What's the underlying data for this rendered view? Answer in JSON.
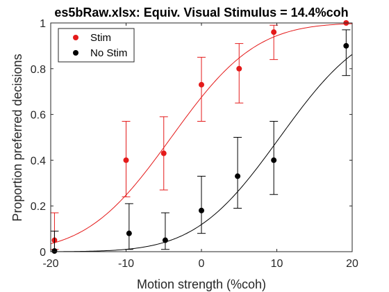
{
  "chart_data": {
    "type": "scatter",
    "title": "es5bRaw.xlsx: Equiv. Visual Stimulus = 14.4%coh",
    "xlabel": "Motion strength (%coh)",
    "ylabel": "Proportion preferred decisions",
    "xlim": [
      -20,
      20
    ],
    "ylim": [
      0,
      1
    ],
    "x_ticks": [
      -20,
      -10,
      0,
      10,
      20
    ],
    "y_ticks": [
      0,
      0.2,
      0.4,
      0.6,
      0.8,
      1
    ],
    "x_tick_labels": [
      "-20",
      "-10",
      "0",
      "10",
      "20"
    ],
    "y_tick_labels": [
      "0",
      "0.2",
      "0.4",
      "0.6",
      "0.8",
      "1"
    ],
    "grid": false,
    "legend_position": "top-left",
    "series": [
      {
        "name": "Stim",
        "color": "#e41a1a",
        "x": [
          -19.5,
          -10,
          -5,
          0,
          5,
          9.6,
          19.2
        ],
        "y": [
          0.05,
          0.4,
          0.43,
          0.73,
          0.8,
          0.96,
          1.0
        ],
        "err_low": [
          0.01,
          0.24,
          0.27,
          0.57,
          0.65,
          0.84,
          1.0
        ],
        "err_high": [
          0.17,
          0.57,
          0.59,
          0.85,
          0.91,
          0.99,
          1.0
        ],
        "fit": {
          "mu": -4.0,
          "sigma": 8.8
        }
      },
      {
        "name": "No Stim",
        "color": "#000000",
        "x": [
          -19.5,
          -9.6,
          -4.8,
          0,
          4.8,
          9.6,
          19.2
        ],
        "y": [
          0.003,
          0.08,
          0.05,
          0.18,
          0.33,
          0.4,
          0.9
        ],
        "err_low": [
          0.0,
          0.01,
          0.01,
          0.08,
          0.19,
          0.25,
          0.77
        ],
        "err_high": [
          0.09,
          0.21,
          0.17,
          0.33,
          0.5,
          0.57,
          0.97
        ],
        "fit": {
          "mu": 10.4,
          "sigma": 8.8
        }
      }
    ]
  }
}
